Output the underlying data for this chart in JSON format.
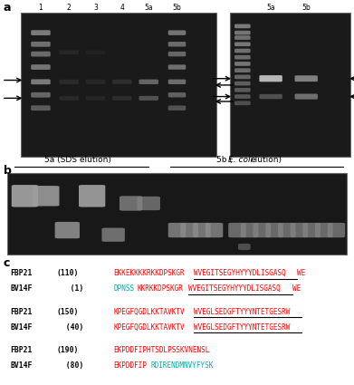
{
  "background_color": "#ffffff",
  "gel_bg": "#1a1a1a",
  "gel_border": "#888888",
  "panel_labels": [
    "a",
    "b",
    "c"
  ],
  "gel1_lane_labels": [
    "1",
    "2",
    "3",
    "4",
    "5a",
    "5b"
  ],
  "gel2_lane_labels": [
    "5a",
    "5b"
  ],
  "label_b_left": "5a (SDS elution)",
  "label_b_right_pre": "5b (",
  "label_b_right_italic": "E. coli",
  "label_b_right_post": "elution)",
  "seq_rows": [
    {
      "label": "FBP21",
      "num": "(110)",
      "segments": [
        {
          "text": "EKKEKKKKRKKDPSKGR",
          "color": "#ff0000",
          "ul": false
        },
        {
          "text": "WVEGITSEGYHYYYDLISGASQ",
          "color": "#ff0000",
          "ul": true
        },
        {
          "text": "WE",
          "color": "#ff0000",
          "ul": false
        }
      ]
    },
    {
      "label": "BV14F",
      "num": "   (1)",
      "segments": [
        {
          "text": "DPNSS",
          "color": "#00aaaa",
          "ul": false
        },
        {
          "text": "KKRKKDPSKGR",
          "color": "#ff0000",
          "ul": false
        },
        {
          "text": "WVEGITSEGYHYYYDLISGASQ",
          "color": "#ff0000",
          "ul": true
        },
        {
          "text": "WE",
          "color": "#ff0000",
          "ul": false
        }
      ]
    },
    {
      "label": "FBP21",
      "num": "(150)",
      "segments": [
        {
          "text": "KPEGFQGDLKKTAVKTV",
          "color": "#ff0000",
          "ul": false
        },
        {
          "text": "WVEGLSEDGFTYYYNTETGESRW",
          "color": "#ff0000",
          "ul": true
        }
      ]
    },
    {
      "label": "BV14F",
      "num": "  (40)",
      "segments": [
        {
          "text": "KPEGFQGDLKKTAVKTV",
          "color": "#ff0000",
          "ul": false
        },
        {
          "text": "WVEGLSEDGFTYYYNTETGESRW",
          "color": "#ff0000",
          "ul": true
        }
      ]
    },
    {
      "label": "FBP21",
      "num": "(190)",
      "segments": [
        {
          "text": "EKPDDFIPHTSDLPSSKVNENSL",
          "color": "#ff0000",
          "ul": false
        }
      ]
    },
    {
      "label": "BV14F",
      "num": "  (80)",
      "segments": [
        {
          "text": "EKPDDFIP",
          "color": "#ff0000",
          "ul": false
        },
        {
          "text": "RDIRENDMNVYFYSK",
          "color": "#00aaaa",
          "ul": false
        }
      ]
    }
  ]
}
